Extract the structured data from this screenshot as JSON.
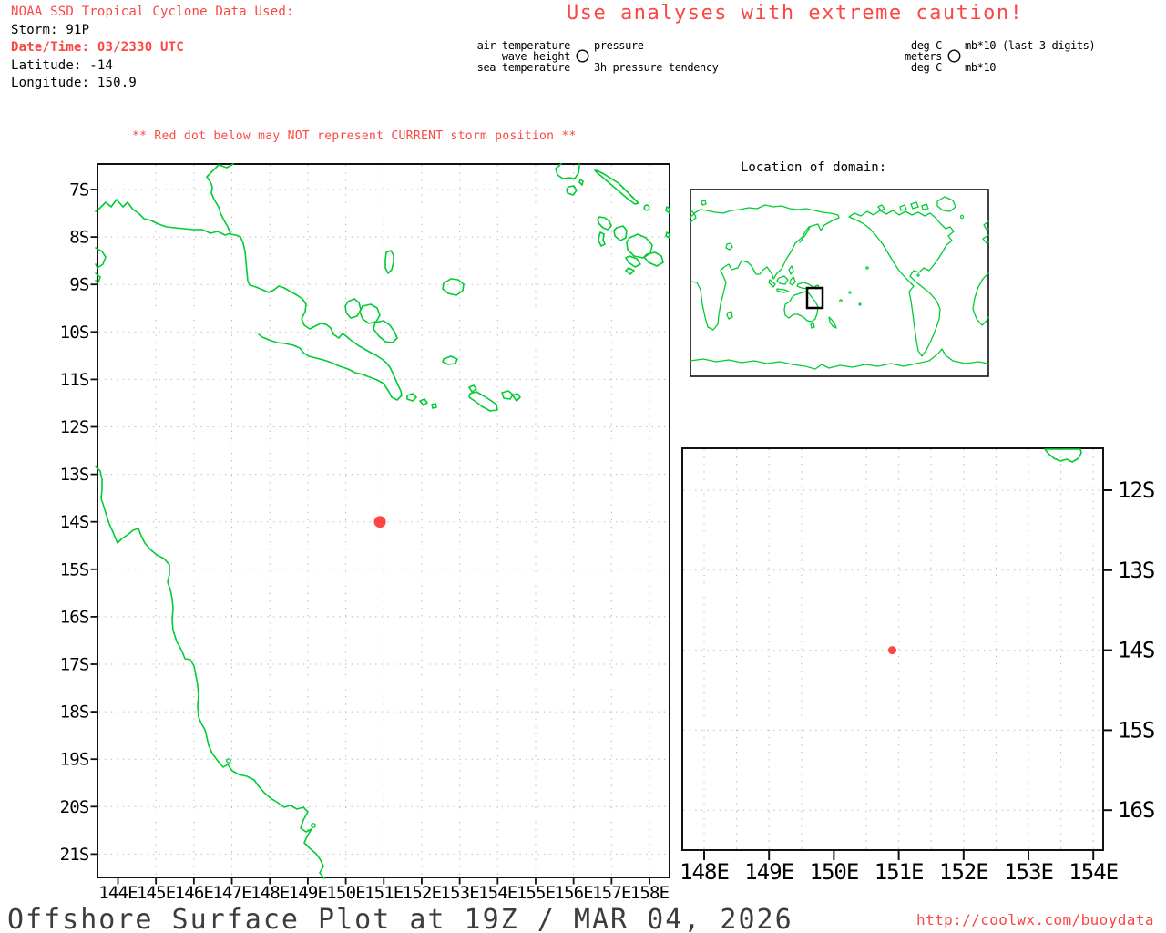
{
  "colors": {
    "red": "#fb4642",
    "green": "#00cc33",
    "grid": "#b5b5b5",
    "black": "#000000",
    "title_gray": "#3d3d3d"
  },
  "header": {
    "source_line": "NOAA SSD Tropical Cyclone Data Used:",
    "storm_line": "Storm: 91P",
    "datetime_line": "Date/Time: 03/2330 UTC",
    "latitude_line": "Latitude: -14",
    "longitude_line": "Longitude: 150.9"
  },
  "caution_title": "Use analyses with extreme caution!",
  "legend": {
    "station_model": {
      "left_labels": [
        "air temperature",
        "wave height",
        "sea temperature"
      ],
      "right_labels": [
        "pressure",
        "3h pressure tendency"
      ]
    },
    "units_model": {
      "left_labels": [
        "deg C",
        "meters",
        "deg C"
      ],
      "right_labels": [
        "mb*10 (last 3 digits)",
        "mb*10"
      ]
    }
  },
  "warning_text": "** Red dot below may NOT represent CURRENT storm position **",
  "inset": {
    "title": "Location of domain:"
  },
  "storm": {
    "id": "91P",
    "longitude": 150.9,
    "latitude": -14
  },
  "footer": {
    "title": "Offshore Surface Plot at 19Z / MAR 04, 2026",
    "url": "http://coolwx.com/buoydata"
  },
  "chart_data": [
    {
      "type": "scatter",
      "name": "main-map",
      "title": "Offshore surface plot domain map",
      "x_ticks": [
        "144E",
        "145E",
        "146E",
        "147E",
        "148E",
        "149E",
        "150E",
        "151E",
        "152E",
        "153E",
        "154E",
        "155E",
        "156E",
        "157E",
        "158E"
      ],
      "y_ticks": [
        "7S",
        "8S",
        "9S",
        "10S",
        "11S",
        "12S",
        "13S",
        "14S",
        "15S",
        "16S",
        "17S",
        "18S",
        "19S",
        "20S",
        "21S"
      ],
      "lon_range": [
        143.5,
        158.5
      ],
      "lat_range": [
        -21.5,
        -6.5
      ],
      "grid": "dotted, 1 degree",
      "points": [
        {
          "lon": 150.9,
          "lat": -14,
          "label": "storm 91P position",
          "color": "#fb4642"
        }
      ]
    },
    {
      "type": "scatter",
      "name": "zoom-map",
      "title": "Zoomed domain map",
      "x_ticks": [
        "148E",
        "149E",
        "150E",
        "151E",
        "152E",
        "153E",
        "154E"
      ],
      "y_ticks": [
        "12S",
        "13S",
        "14S",
        "15S",
        "16S"
      ],
      "lon_range": [
        147.6,
        154.15
      ],
      "lat_range": [
        -16.5,
        -11.5
      ],
      "grid": "dotted, 0.5 degree lon / 1 degree lat",
      "points": [
        {
          "lon": 150.9,
          "lat": -14,
          "label": "storm 91P position",
          "color": "#fb4642"
        }
      ]
    }
  ]
}
